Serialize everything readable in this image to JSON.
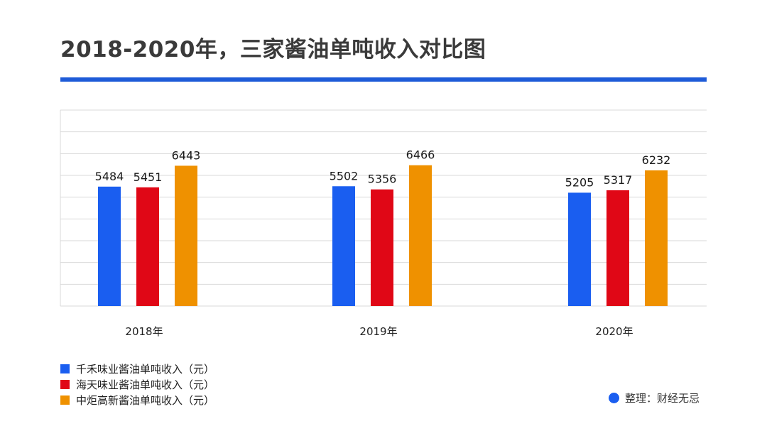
{
  "title": "2018-2020年，三家酱油单吨收入对比图",
  "colors": {
    "accent": "#1e5bd8",
    "grid": "#d9d9d9"
  },
  "chart_data": {
    "type": "bar",
    "categories": [
      "2018年",
      "2019年",
      "2020年"
    ],
    "series": [
      {
        "name": "千禾味业酱油单吨收入（元）",
        "color": "#1a5ef0",
        "values": [
          5484,
          5502,
          5205
        ]
      },
      {
        "name": "海天味业酱油单吨收入（元）",
        "color": "#e00716",
        "values": [
          5451,
          5356,
          5317
        ]
      },
      {
        "name": "中炬高新酱油单吨收入（元）",
        "color": "#ef9100",
        "values": [
          6443,
          6466,
          6232
        ]
      }
    ],
    "ylim": [
      0,
      9000
    ],
    "grid": true,
    "legend": "bottom-left",
    "xlabel": "",
    "ylabel": ""
  },
  "source": {
    "label": "整理：财经无忌",
    "dot_color": "#1a5ef0"
  }
}
